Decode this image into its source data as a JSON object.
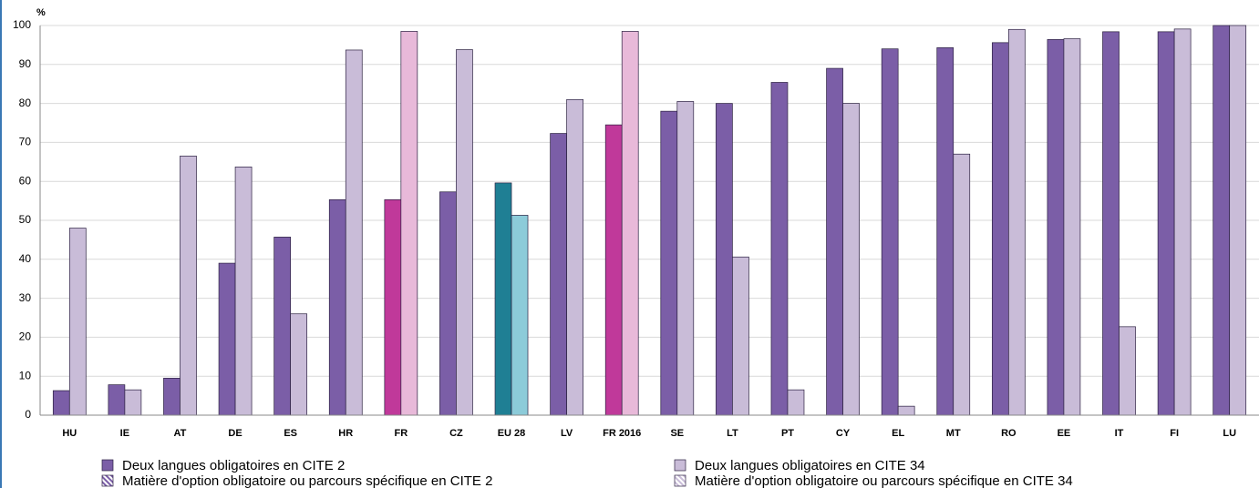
{
  "chart_data": {
    "type": "bar",
    "y_label": "%",
    "categories": [
      "HU",
      "IE",
      "AT",
      "DE",
      "ES",
      "HR",
      "FR",
      "CZ",
      "EU 28",
      "LV",
      "FR 2016",
      "SE",
      "LT",
      "PT",
      "CY",
      "EL",
      "MT",
      "RO",
      "EE",
      "IT",
      "FI",
      "LU"
    ],
    "series": [
      {
        "name": "Deux langues obligatoires en CITE 2",
        "color": "#7b5ea7",
        "colors": [
          "#7b5ea7",
          "#7b5ea7",
          "#7b5ea7",
          "#7b5ea7",
          "#7b5ea7",
          "#7b5ea7",
          "#c0399a",
          "#7b5ea7",
          "#1f7f94",
          "#7b5ea7",
          "#c0399a",
          "#7b5ea7",
          "#7b5ea7",
          "#7b5ea7",
          "#7b5ea7",
          "#7b5ea7",
          "#7b5ea7",
          "#7b5ea7",
          "#7b5ea7",
          "#7b5ea7",
          "#7b5ea7",
          "#7b5ea7"
        ],
        "values": [
          6.3,
          7.8,
          9.5,
          39,
          45.7,
          55.3,
          55.3,
          57.3,
          59.6,
          72.3,
          74.5,
          78,
          80,
          85.4,
          89,
          94,
          94.3,
          95.6,
          96.4,
          98.4,
          98.4,
          100
        ]
      },
      {
        "name": "Deux langues obligatoires en CITE 34",
        "color": "#c9bcd8",
        "colors": [
          "#c9bcd8",
          "#c9bcd8",
          "#c9bcd8",
          "#c9bcd8",
          "#c9bcd8",
          "#c9bcd8",
          "#e8b9d9",
          "#c9bcd8",
          "#8ccbd9",
          "#c9bcd8",
          "#e8b9d9",
          "#c9bcd8",
          "#c9bcd8",
          "#c9bcd8",
          "#c9bcd8",
          "#c9bcd8",
          "#c9bcd8",
          "#c9bcd8",
          "#c9bcd8",
          "#c9bcd8",
          "#c9bcd8",
          "#c9bcd8"
        ],
        "values": [
          48,
          6.5,
          66.5,
          63.7,
          26,
          93.7,
          98.5,
          93.8,
          51.3,
          81,
          98.5,
          80.5,
          40.6,
          6.5,
          80,
          2.3,
          67,
          99,
          96.6,
          22.7,
          99.1,
          100
        ]
      },
      {
        "name": "Matière d'option obligatoire ou parcours spécifique en CITE 2",
        "color": "#7b5ea7",
        "hatched": true,
        "values": [
          null,
          null,
          null,
          null,
          null,
          null,
          null,
          null,
          null,
          null,
          null,
          null,
          null,
          null,
          null,
          null,
          null,
          null,
          null,
          null,
          null,
          null
        ]
      },
      {
        "name": "Matière d'option obligatoire ou parcours spécifique en CITE 34",
        "color": "#c9bcd8",
        "hatched": true,
        "values": [
          null,
          null,
          null,
          null,
          null,
          null,
          null,
          null,
          null,
          null,
          null,
          null,
          null,
          null,
          null,
          null,
          null,
          null,
          null,
          null,
          null,
          null
        ]
      }
    ],
    "ylim": [
      0,
      100
    ],
    "yticks": [
      0,
      10,
      20,
      30,
      40,
      50,
      60,
      70,
      80,
      90,
      100
    ],
    "grid": true
  }
}
